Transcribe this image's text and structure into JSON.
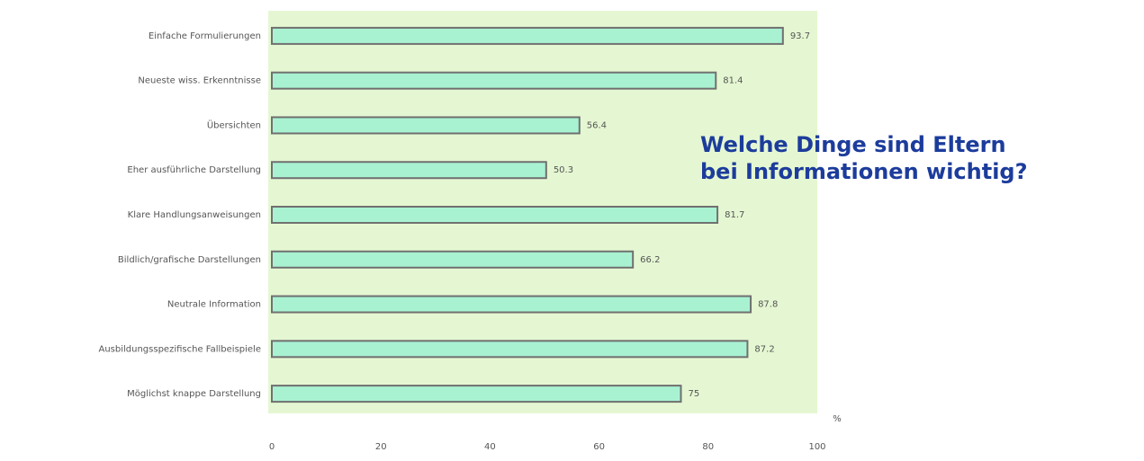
{
  "chart_data": {
    "type": "barh",
    "title_lines": [
      "Welche Dinge sind Eltern",
      "bei Informationen wichtig?"
    ],
    "categories": [
      "Einfache Formulierungen",
      "Neueste wiss. Erkenntnisse",
      "Übersichten",
      "Eher ausführliche Darstellung",
      "Klare Handlungsanweisungen",
      "Bildlich/grafische Darstellungen",
      "Neutrale Information",
      "Ausbildungsspezifische Fallbeispiele",
      "Möglichst knappe Darstellung"
    ],
    "values": [
      93.7,
      81.4,
      56.4,
      50.3,
      81.7,
      66.2,
      87.8,
      87.2,
      75
    ],
    "color": "#a8f2d2",
    "xlim": [
      0,
      100
    ],
    "xticks": [
      0,
      20,
      40,
      60,
      80,
      100
    ],
    "xlabel": "%"
  }
}
